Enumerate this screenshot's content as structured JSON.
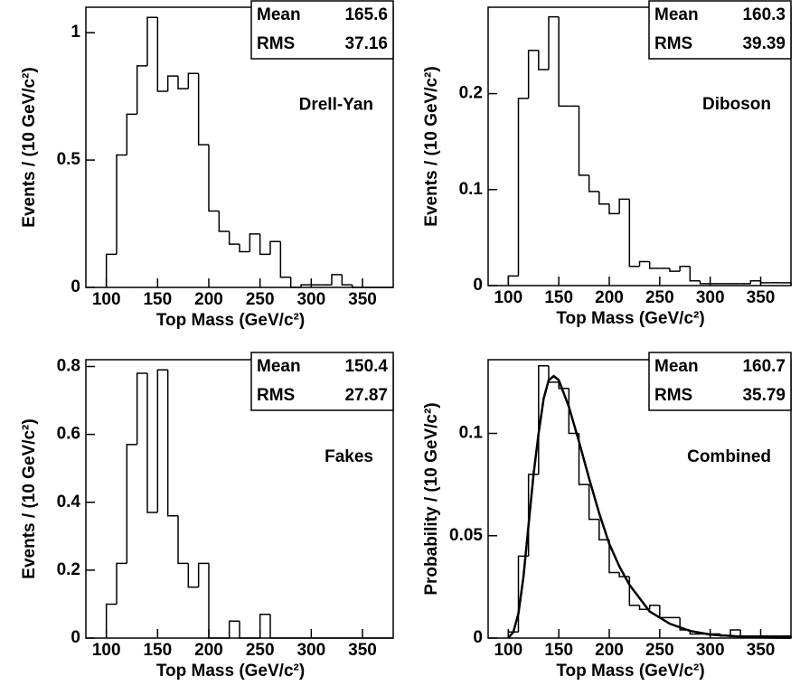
{
  "chart_data": [
    {
      "type": "histogram",
      "annotation": "Drell-Yan",
      "xlabel": "Top Mass (GeV/c²)",
      "ylabel": "Events / (10 GeV/c²)",
      "bins": [
        100,
        110,
        120,
        130,
        140,
        150,
        160,
        170,
        180,
        190,
        200,
        210,
        220,
        230,
        240,
        250,
        260,
        270,
        280,
        290,
        300,
        310,
        320,
        330,
        340,
        350,
        360,
        370,
        380
      ],
      "values": [
        0.13,
        0.52,
        0.68,
        0.87,
        1.06,
        0.77,
        0.83,
        0.78,
        0.84,
        0.56,
        0.3,
        0.22,
        0.17,
        0.14,
        0.21,
        0.13,
        0.18,
        0.04,
        0,
        0.01,
        0.01,
        0.01,
        0.05,
        0.01,
        0,
        0,
        0,
        0
      ],
      "xlim": [
        80,
        380
      ],
      "xticks": [
        100,
        150,
        200,
        250,
        300,
        350
      ],
      "ylim": [
        0,
        1.1
      ],
      "yticks": [
        0,
        0.5,
        1
      ],
      "stats": [
        {
          "label": "Mean",
          "value": 165.6
        },
        {
          "label": "RMS",
          "value": 37.16
        }
      ]
    },
    {
      "type": "histogram",
      "annotation": "Diboson",
      "xlabel": "Top Mass (GeV/c²)",
      "ylabel": "Events / (10 GeV/c²)",
      "bins": [
        100,
        110,
        120,
        130,
        140,
        150,
        160,
        170,
        180,
        190,
        200,
        210,
        220,
        230,
        240,
        250,
        260,
        270,
        280,
        290,
        300,
        310,
        320,
        330,
        340,
        350,
        360,
        370,
        380
      ],
      "values": [
        0.01,
        0.195,
        0.245,
        0.225,
        0.28,
        0.187,
        0.187,
        0.115,
        0.098,
        0.085,
        0.075,
        0.09,
        0.02,
        0.025,
        0.018,
        0.018,
        0.015,
        0.02,
        0.005,
        0.002,
        0.002,
        0.002,
        0.002,
        0.002,
        0.005,
        0.003,
        0.003,
        0.003
      ],
      "xlim": [
        80,
        380
      ],
      "xticks": [
        100,
        150,
        200,
        250,
        300,
        350
      ],
      "ylim": [
        0,
        0.29
      ],
      "yticks": [
        0,
        0.1,
        0.2
      ],
      "stats": [
        {
          "label": "Mean",
          "value": 160.3
        },
        {
          "label": "RMS",
          "value": 39.39
        }
      ]
    },
    {
      "type": "histogram",
      "annotation": "Fakes",
      "xlabel": "Top Mass (GeV/c²)",
      "ylabel": "Events / (10 GeV/c²)",
      "bins": [
        100,
        110,
        120,
        130,
        140,
        150,
        160,
        170,
        180,
        190,
        200,
        210,
        220,
        230,
        240,
        250,
        260,
        270,
        280,
        290,
        300,
        310,
        320,
        330,
        340,
        350,
        360,
        370,
        380
      ],
      "values": [
        0.1,
        0.22,
        0.57,
        0.78,
        0.37,
        0.79,
        0.36,
        0.22,
        0.15,
        0.22,
        0,
        0,
        0.05,
        0,
        0,
        0.07,
        0,
        0,
        0,
        0,
        0,
        0,
        0,
        0,
        0,
        0,
        0,
        0
      ],
      "xlim": [
        80,
        380
      ],
      "xticks": [
        100,
        150,
        200,
        250,
        300,
        350
      ],
      "ylim": [
        0,
        0.82
      ],
      "yticks": [
        0,
        0.2,
        0.4,
        0.6,
        0.8
      ],
      "stats": [
        {
          "label": "Mean",
          "value": 150.4
        },
        {
          "label": "RMS",
          "value": 27.87
        }
      ]
    },
    {
      "type": "histogram",
      "annotation": "Combined",
      "xlabel": "Top Mass (GeV/c²)",
      "ylabel": "Probability / (10 GeV/c²)",
      "bins": [
        100,
        110,
        120,
        130,
        140,
        150,
        160,
        170,
        180,
        190,
        200,
        210,
        220,
        230,
        240,
        250,
        260,
        270,
        280,
        290,
        300,
        310,
        320,
        330,
        340,
        350,
        360,
        370,
        380
      ],
      "values": [
        0.003,
        0.04,
        0.08,
        0.133,
        0.125,
        0.122,
        0.1,
        0.075,
        0.058,
        0.048,
        0.032,
        0.03,
        0.016,
        0.014,
        0.016,
        0.01,
        0.01,
        0.004,
        0.002,
        0.002,
        0.002,
        0.001,
        0.004,
        0.001,
        0.001,
        0.001,
        0.001,
        0.001
      ],
      "xlim": [
        80,
        380
      ],
      "xticks": [
        100,
        150,
        200,
        250,
        300,
        350
      ],
      "ylim": [
        0,
        0.136
      ],
      "yticks": [
        0,
        0.05,
        0.1
      ],
      "fit": {
        "x": [
          100,
          105,
          110,
          115,
          120,
          125,
          130,
          135,
          140,
          145,
          150,
          160,
          170,
          180,
          190,
          200,
          210,
          220,
          240,
          260,
          280,
          300,
          340,
          380
        ],
        "values": [
          0,
          0.003,
          0.012,
          0.03,
          0.055,
          0.08,
          0.1,
          0.117,
          0.126,
          0.128,
          0.126,
          0.113,
          0.096,
          0.078,
          0.061,
          0.046,
          0.035,
          0.026,
          0.013,
          0.007,
          0.0035,
          0.0017,
          0.0004,
          0.0001
        ]
      },
      "stats": [
        {
          "label": "Mean",
          "value": 160.7
        },
        {
          "label": "RMS",
          "value": 35.79
        }
      ]
    }
  ]
}
